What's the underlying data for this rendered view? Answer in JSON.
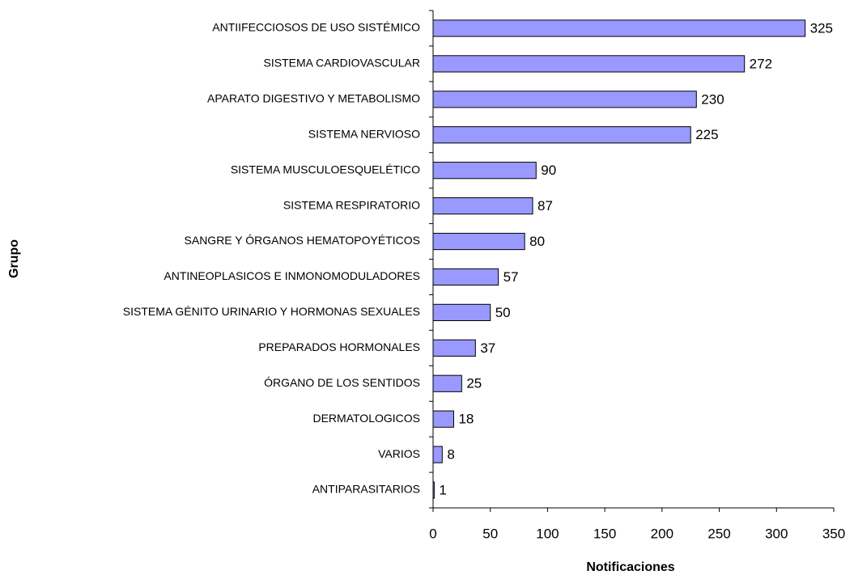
{
  "chart_data": {
    "type": "bar",
    "orientation": "horizontal",
    "x_label": "Notificaciones",
    "y_label": "Grupo",
    "categories": [
      "ANTIIFECCIOSOS DE USO SISTÉMICO",
      "SISTEMA CARDIOVASCULAR",
      "APARATO DIGESTIVO Y METABOLISMO",
      "SISTEMA NERVIOSO",
      "SISTEMA MUSCULOESQUELÉTICO",
      "SISTEMA RESPIRATORIO",
      "SANGRE Y ÓRGANOS HEMATOPOYÉTICOS",
      "ANTINEOPLASICOS E INMONOMODULADORES",
      "SISTEMA GÉNITO URINARIO Y HORMONAS SEXUALES",
      "PREPARADOS HORMONALES",
      "ÓRGANO DE LOS SENTIDOS",
      "DERMATOLOGICOS",
      "VARIOS",
      "ANTIPARASITARIOS"
    ],
    "values": [
      325,
      272,
      230,
      225,
      90,
      87,
      80,
      57,
      50,
      37,
      25,
      18,
      8,
      1
    ],
    "color": "#9999ff",
    "xlim": [
      0,
      350
    ],
    "xticks": [
      0,
      50,
      100,
      150,
      200,
      250,
      300,
      350
    ]
  }
}
